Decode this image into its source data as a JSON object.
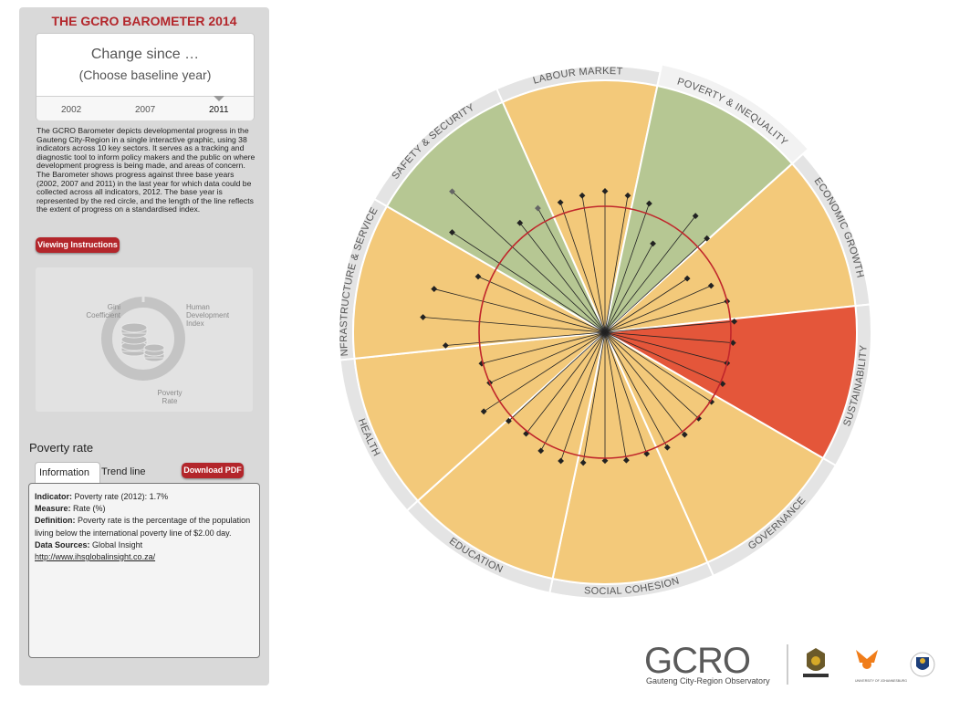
{
  "panel": {
    "title": "THE GCRO BAROMETER 2014",
    "baseline_line1": "Change since …",
    "baseline_line2": "(Choose baseline year)",
    "years": [
      "2002",
      "2007",
      "2011"
    ],
    "selected_year": "2011",
    "description": "The GCRO Barometer depicts developmental progress in the Gauteng City-Region in a single interactive graphic, using 38 indicators across 10 key sectors. It serves as a tracking and diagnostic tool to inform policy makers and the public on where development progress is being made, and areas of concern. The Barometer shows progress against three base years (2002, 2007 and 2011) in the last year for which data could be collected across all indicators, 2012. The base year is represented by the red circle, and the length of the line reflects the extent of progress on a standardised index.",
    "viewing_button": "Viewing Instructions",
    "mini_labels": {
      "gini": "Gini Coefficient",
      "hdi": "Human Development Index",
      "poverty": "Poverty Rate"
    }
  },
  "indicator": {
    "name": "Poverty rate",
    "tabs": [
      "Information",
      "Trend line"
    ],
    "active_tab": "Information",
    "download_button": "Download PDF",
    "indicator_label": "Indicator:",
    "indicator_value": "Poverty rate (2012): 1.7%",
    "measure_label": "Measure:",
    "measure_value": "Rate (%)",
    "definition_label": "Definition:",
    "definition_value": "Poverty rate is the percentage of the population living below the international poverty line of $2.00 day.",
    "sources_label": "Data Sources:",
    "sources_value": "Global Insight",
    "link": "http://www.ihsglobalinsight.co.za/"
  },
  "sectors": [
    {
      "label": "LABOUR MARKET",
      "color": "#f3c97a"
    },
    {
      "label": "POVERTY & INEQUALITY",
      "color": "#b6c793",
      "selected": true
    },
    {
      "label": "ECONOMIC GROWTH",
      "color": "#f3c97a"
    },
    {
      "label": "SUSTAINABILITY",
      "color": "#e4563a"
    },
    {
      "label": "GOVERNANCE",
      "color": "#f3c97a"
    },
    {
      "label": "SOCIAL COHESION",
      "color": "#f3c97a"
    },
    {
      "label": "EDUCATION",
      "color": "#f3c97a"
    },
    {
      "label": "HEALTH",
      "color": "#f3c97a"
    },
    {
      "label": "INFRASTRUCTURE & SERVICES",
      "color": "#f3c97a"
    },
    {
      "label": "SAFETY & SECURITY",
      "color": "#b6c793"
    }
  ],
  "indicator_scores": [
    1.45,
    1.4,
    1.1,
    1.45,
    1.65,
    1.1,
    1.12,
    1.09,
    1.1,
    1.12,
    1.1,
    1.08,
    0.8,
    1.17,
    1.1,
    0.78,
    0.92,
    1.0,
    1.03,
    1.02,
    1.0,
    1.02,
    1.01,
    1.01,
    1.03,
    1.04,
    1.02,
    1.03,
    1.02,
    1.05,
    1.08,
    1.07,
    1.02,
    1.04,
    1.15,
    1.0,
    1.01,
    1.27
  ],
  "logos": {
    "wordmark": "GCRO",
    "tagline": "Gauteng City-Region Observatory",
    "partner_caption": "UNIVERSITY OF JOHANNESBURG"
  }
}
